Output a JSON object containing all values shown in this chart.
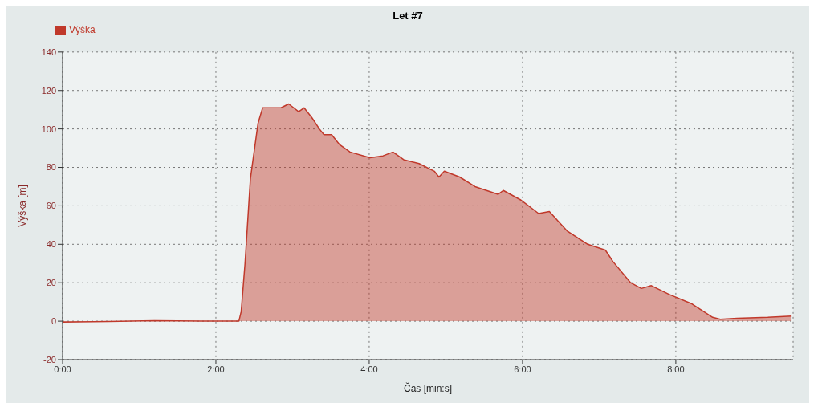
{
  "chart_data": {
    "type": "area",
    "title": "Let #7",
    "xlabel": "Čas [min:s]",
    "ylabel": "Výška [m]",
    "xlim": [
      0,
      9.53
    ],
    "xticks": [
      {
        "value": 0,
        "label": "0:00"
      },
      {
        "value": 2,
        "label": "2:00"
      },
      {
        "value": 4,
        "label": "4:00"
      },
      {
        "value": 6,
        "label": "6:00"
      },
      {
        "value": 8,
        "label": "8:00"
      }
    ],
    "ylim": [
      -20,
      140
    ],
    "yticks": [
      -20,
      0,
      20,
      40,
      60,
      80,
      100,
      120,
      140
    ],
    "grid": true,
    "legend": "top left",
    "marker": "none",
    "line_style": "solid",
    "series": [
      {
        "name": "Výška",
        "color": "#c0392b",
        "x": [
          0,
          0.6,
          1.2,
          1.8,
          2.3,
          2.33,
          2.38,
          2.45,
          2.55,
          2.61,
          2.85,
          2.95,
          3.08,
          3.15,
          3.25,
          3.35,
          3.41,
          3.51,
          3.61,
          3.75,
          4.01,
          4.18,
          4.31,
          4.45,
          4.65,
          4.85,
          4.91,
          4.98,
          5.18,
          5.38,
          5.68,
          5.75,
          5.98,
          6.21,
          6.35,
          6.58,
          6.85,
          7.08,
          7.18,
          7.41,
          7.55,
          7.68,
          7.91,
          8.21,
          8.48,
          8.58,
          8.8,
          9.2,
          9.51
        ],
        "values": [
          -0.5,
          -0.2,
          0.3,
          0,
          0,
          5,
          30,
          74,
          103,
          111,
          111,
          113,
          109,
          111,
          106,
          100,
          97,
          97,
          92,
          88,
          85,
          86,
          88,
          84,
          82,
          78,
          75,
          78,
          75,
          70,
          66,
          68,
          63,
          56,
          57,
          47,
          40,
          37,
          31,
          20,
          17,
          18.5,
          14,
          9,
          2,
          1,
          1.5,
          2,
          2.7
        ]
      }
    ]
  }
}
